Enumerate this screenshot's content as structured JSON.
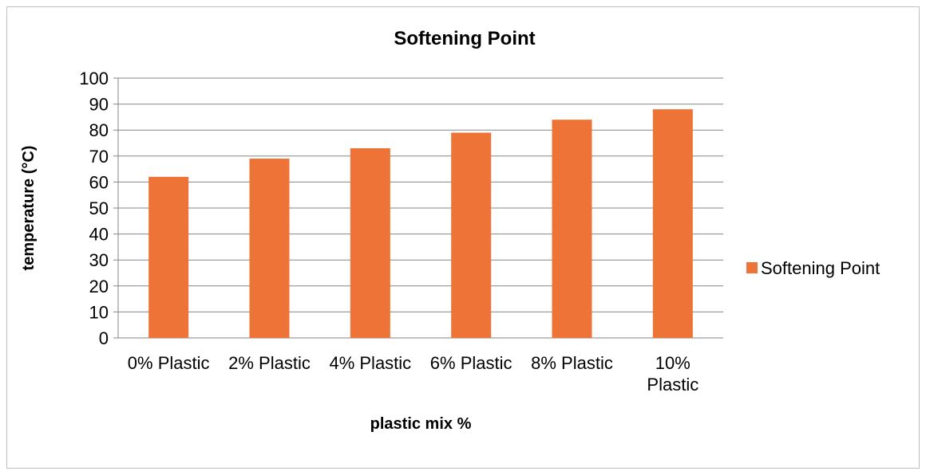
{
  "chart_data": {
    "type": "bar",
    "title": "Softening Point",
    "xlabel": "plastic mix %",
    "ylabel": "temperature (°C)",
    "categories": [
      "0% Plastic",
      "2% Plastic",
      "4% Plastic",
      "6% Plastic",
      "8% Plastic",
      "10% Plastic"
    ],
    "series": [
      {
        "name": "Softening Point",
        "values": [
          62,
          69,
          73,
          79,
          84,
          88
        ]
      }
    ],
    "ylim": [
      0,
      100
    ],
    "yticks": [
      0,
      10,
      20,
      30,
      40,
      50,
      60,
      70,
      80,
      90,
      100
    ],
    "grid": true,
    "legend_position": "right",
    "colors": {
      "bar": "#ED7436",
      "grid": "#868686",
      "axis": "#868686"
    }
  }
}
